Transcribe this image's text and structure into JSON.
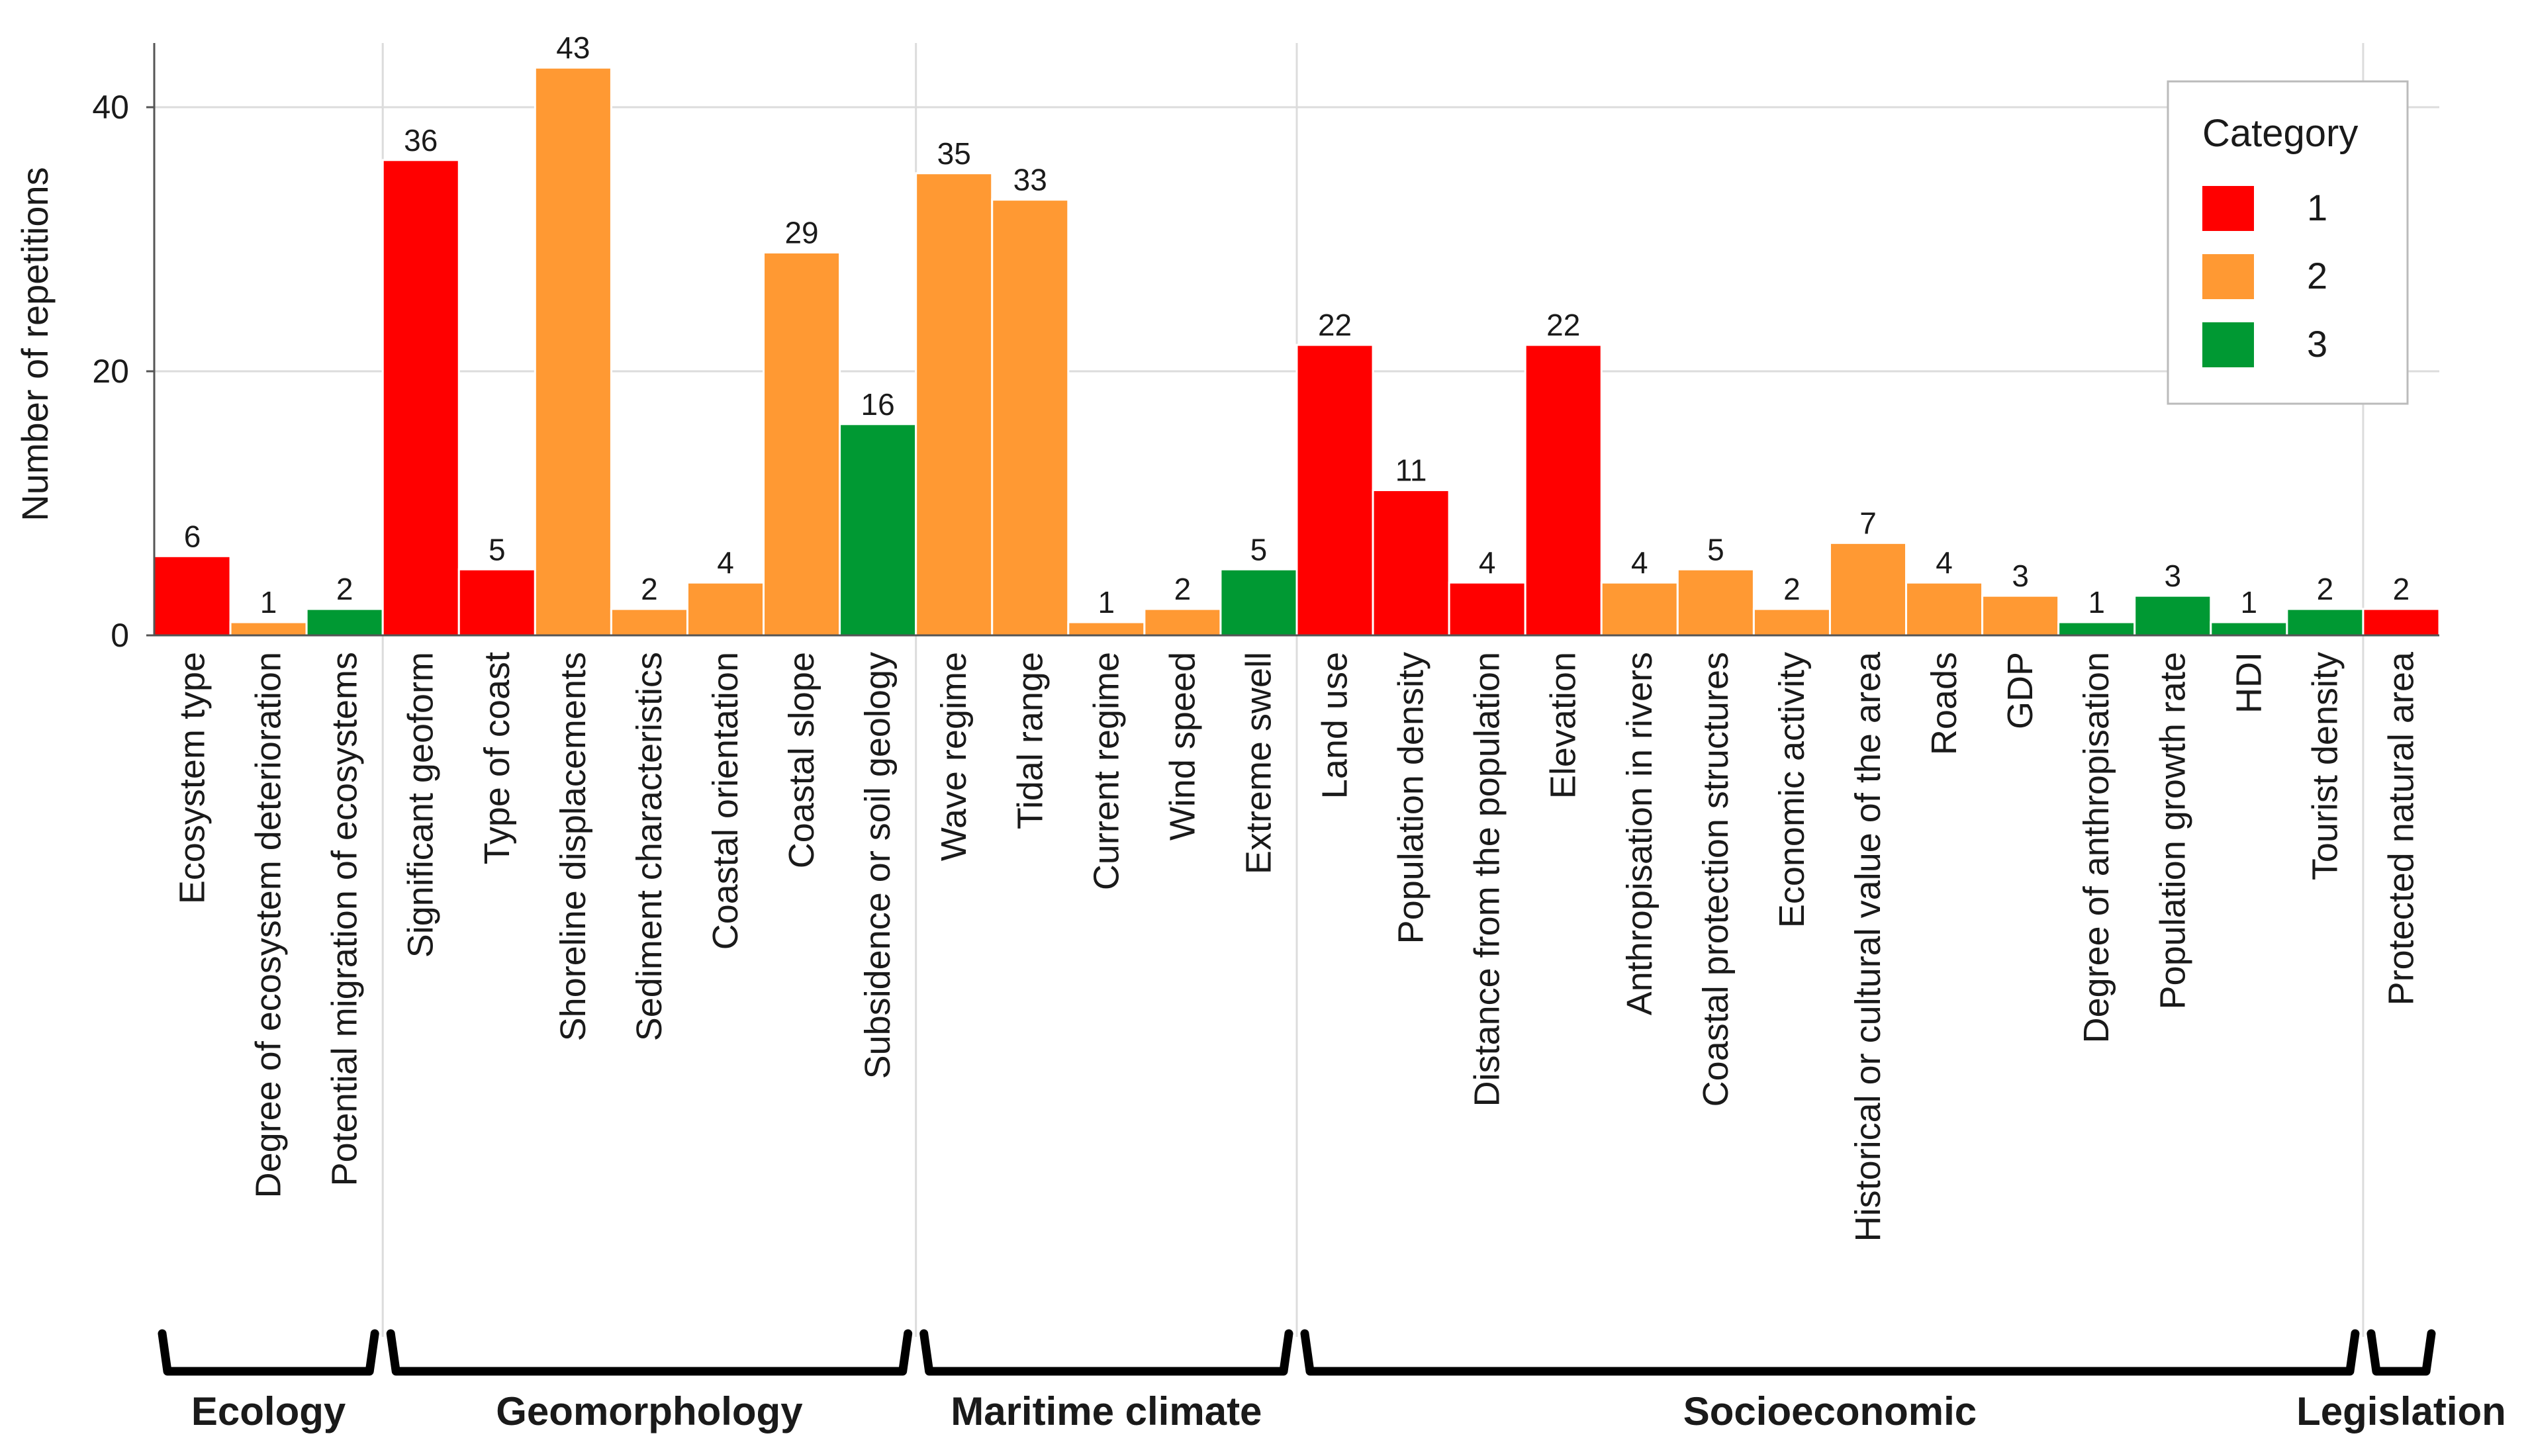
{
  "chart_data": {
    "type": "bar",
    "ylabel": "Number of repetitions",
    "xlabel": "",
    "ylim": [
      0,
      45
    ],
    "yticks": [
      0,
      20,
      40
    ],
    "grid": true,
    "legend": {
      "title": "Category",
      "placement": "top-right",
      "entries": [
        {
          "label": "1",
          "color": "#ff0000"
        },
        {
          "label": "2",
          "color": "#ff9933"
        },
        {
          "label": "3",
          "color": "#009933"
        }
      ]
    },
    "categories": [
      "Ecosystem type",
      "Degree of ecosystem deterioration",
      "Potential migration of ecosystems",
      "Significant geoform",
      "Type of coast",
      "Shoreline displacements",
      "Sediment characteristics",
      "Coastal orientation",
      "Coastal slope",
      "Subsidence or soil geology",
      "Wave regime",
      "Tidal range",
      "Current regime",
      "Wind speed",
      "Extreme swell",
      "Land use",
      "Population density",
      "Distance from the population",
      "Elevation",
      "Anthropisation in rivers",
      "Coastal protection structures",
      "Economic activity",
      "Historical or cultural value of the area",
      "Roads",
      "GDP",
      "Degree of anthropisation",
      "Population growth rate",
      "HDI",
      "Tourist density",
      "Protected natural area"
    ],
    "values": [
      6,
      1,
      2,
      36,
      5,
      43,
      2,
      4,
      29,
      16,
      35,
      33,
      1,
      2,
      5,
      22,
      11,
      4,
      22,
      4,
      5,
      2,
      7,
      4,
      3,
      1,
      3,
      1,
      2,
      2
    ],
    "category_codes": [
      "1",
      "2",
      "3",
      "1",
      "1",
      "2",
      "2",
      "2",
      "2",
      "3",
      "2",
      "2",
      "2",
      "2",
      "3",
      "1",
      "1",
      "1",
      "1",
      "2",
      "2",
      "2",
      "2",
      "2",
      "2",
      "3",
      "3",
      "3",
      "3",
      "1"
    ],
    "groups": [
      {
        "name": "Ecology",
        "count": 3
      },
      {
        "name": "Geomorphology",
        "count": 7
      },
      {
        "name": "Maritime climate",
        "count": 5
      },
      {
        "name": "Socioeconomic",
        "count": 14
      },
      {
        "name": "Legislation",
        "count": 1
      }
    ]
  }
}
